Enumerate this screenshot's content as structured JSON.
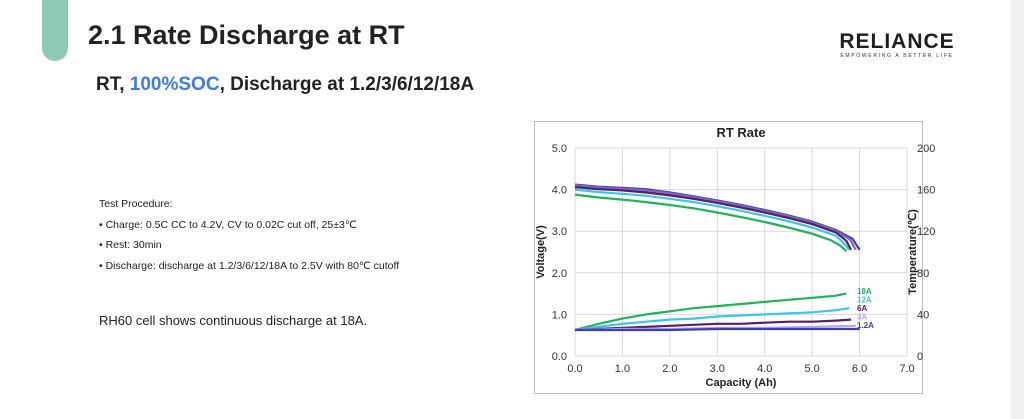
{
  "slide": {
    "title": "2.1 Rate Discharge at RT",
    "subtitle": {
      "part1": "RT, ",
      "highlight": "100%SOC",
      "part2": ", Discharge at 1.2/3/6/12/18A"
    },
    "logo": {
      "word": "RELIANCE",
      "tagline": "EMPOWERING A BETTER LIFE"
    },
    "procedure": {
      "heading": "Test Procedure:",
      "items": [
        "• Charge: 0.5C CC to 4.2V, CV to 0.02C cut off, 25±3℃",
        "• Rest: 30min",
        "• Discharge: discharge at 1.2/3/6/12/18A to 2.5V with 80℃ cutoff"
      ]
    },
    "note": "RH60 cell shows continuous discharge at 18A.",
    "accent_color": "#8ec9b3",
    "highlight_color": "#3d7be8"
  },
  "chart_data": {
    "type": "line",
    "title": "RT Rate",
    "xlabel": "Capacity (Ah)",
    "ylabel": "Voltage(V)",
    "y2label": "Temperature(℃)",
    "xlim": [
      0,
      7
    ],
    "ylim": [
      0,
      5
    ],
    "y2lim": [
      0,
      200
    ],
    "xticks": [
      "0.0",
      "1.0",
      "2.0",
      "3.0",
      "4.0",
      "5.0",
      "6.0",
      "7.0"
    ],
    "yticks": [
      "0.0",
      "1.0",
      "2.0",
      "3.0",
      "4.0",
      "5.0"
    ],
    "y2ticks": [
      "0",
      "40",
      "80",
      "120",
      "160",
      "200"
    ],
    "grid": true,
    "voltage_series": [
      {
        "name": "1.2A",
        "color": "#3f3fb5",
        "x": [
          0,
          0.5,
          1,
          1.5,
          2,
          2.5,
          3,
          3.5,
          4,
          4.5,
          5,
          5.5,
          5.85,
          6.0
        ],
        "y": [
          4.12,
          4.07,
          4.04,
          4.01,
          3.93,
          3.84,
          3.74,
          3.63,
          3.51,
          3.38,
          3.23,
          3.03,
          2.82,
          2.55
        ]
      },
      {
        "name": "3A",
        "color": "#7a68c8",
        "x": [
          0,
          0.5,
          1,
          1.5,
          2,
          2.5,
          3,
          3.5,
          4,
          4.5,
          5,
          5.5,
          5.8,
          5.92
        ],
        "y": [
          4.1,
          4.05,
          4.02,
          3.98,
          3.91,
          3.82,
          3.72,
          3.61,
          3.49,
          3.36,
          3.21,
          3.01,
          2.8,
          2.55
        ]
      },
      {
        "name": "6A",
        "color": "#5a1f60",
        "x": [
          0,
          0.5,
          1,
          1.5,
          2,
          2.5,
          3,
          3.5,
          4,
          4.5,
          5,
          5.5,
          5.72,
          5.82
        ],
        "y": [
          4.06,
          4.01,
          3.98,
          3.93,
          3.86,
          3.78,
          3.68,
          3.57,
          3.45,
          3.32,
          3.17,
          2.97,
          2.77,
          2.55
        ]
      },
      {
        "name": "12A",
        "color": "#3cc6e6",
        "x": [
          0,
          0.5,
          1,
          1.5,
          2,
          2.5,
          3,
          3.5,
          4,
          4.5,
          5,
          5.5,
          5.68,
          5.78
        ],
        "y": [
          4.0,
          3.94,
          3.9,
          3.85,
          3.78,
          3.7,
          3.6,
          3.49,
          3.37,
          3.24,
          3.09,
          2.89,
          2.7,
          2.55
        ]
      },
      {
        "name": "18A",
        "color": "#1fb35a",
        "x": [
          0,
          0.5,
          1,
          1.5,
          2,
          2.5,
          3,
          3.5,
          4,
          4.5,
          5,
          5.4,
          5.6,
          5.72
        ],
        "y": [
          3.88,
          3.81,
          3.76,
          3.7,
          3.63,
          3.55,
          3.45,
          3.34,
          3.22,
          3.09,
          2.94,
          2.78,
          2.65,
          2.52
        ]
      }
    ],
    "temperature_series": [
      {
        "name": "18A",
        "color": "#1fb35a",
        "x": [
          0,
          0.5,
          1,
          1.5,
          2,
          2.5,
          3,
          3.5,
          4,
          4.5,
          5,
          5.5,
          5.72
        ],
        "y": [
          25,
          31,
          36,
          40,
          43,
          46,
          48,
          50,
          52,
          54,
          56,
          58,
          60
        ]
      },
      {
        "name": "12A",
        "color": "#3cc6e6",
        "x": [
          0,
          0.5,
          1,
          1.5,
          2,
          2.5,
          3,
          3.5,
          4,
          4.5,
          5,
          5.5,
          5.78
        ],
        "y": [
          25,
          28,
          31,
          33,
          35,
          36,
          38,
          39,
          40,
          41,
          42,
          44,
          46
        ]
      },
      {
        "name": "6A",
        "color": "#5a1f60",
        "x": [
          0,
          0.5,
          1,
          1.5,
          2,
          2.5,
          3,
          3.5,
          4,
          4.5,
          5,
          5.5,
          5.82
        ],
        "y": [
          25,
          26,
          27,
          28,
          29,
          30,
          31,
          31,
          32,
          33,
          33,
          34,
          35
        ]
      },
      {
        "name": "3A",
        "color": "#b5a5e0",
        "x": [
          0,
          1,
          2,
          3,
          4,
          5,
          5.92
        ],
        "y": [
          25,
          26,
          26,
          27,
          27,
          28,
          29
        ]
      },
      {
        "name": "1.2A",
        "color": "#3f3fb5",
        "x": [
          0,
          1,
          2,
          3,
          4,
          5,
          6.0
        ],
        "y": [
          25,
          25,
          25,
          26,
          26,
          26,
          26
        ]
      }
    ],
    "legend": [
      {
        "label": "18A",
        "color": "#1fb35a"
      },
      {
        "label": "12A",
        "color": "#3cc6e6"
      },
      {
        "label": "6A",
        "color": "#5a1f60"
      },
      {
        "label": "3A",
        "color": "#b5a5e0"
      },
      {
        "label": "1.2A",
        "color": "#3f3fb5"
      }
    ]
  }
}
